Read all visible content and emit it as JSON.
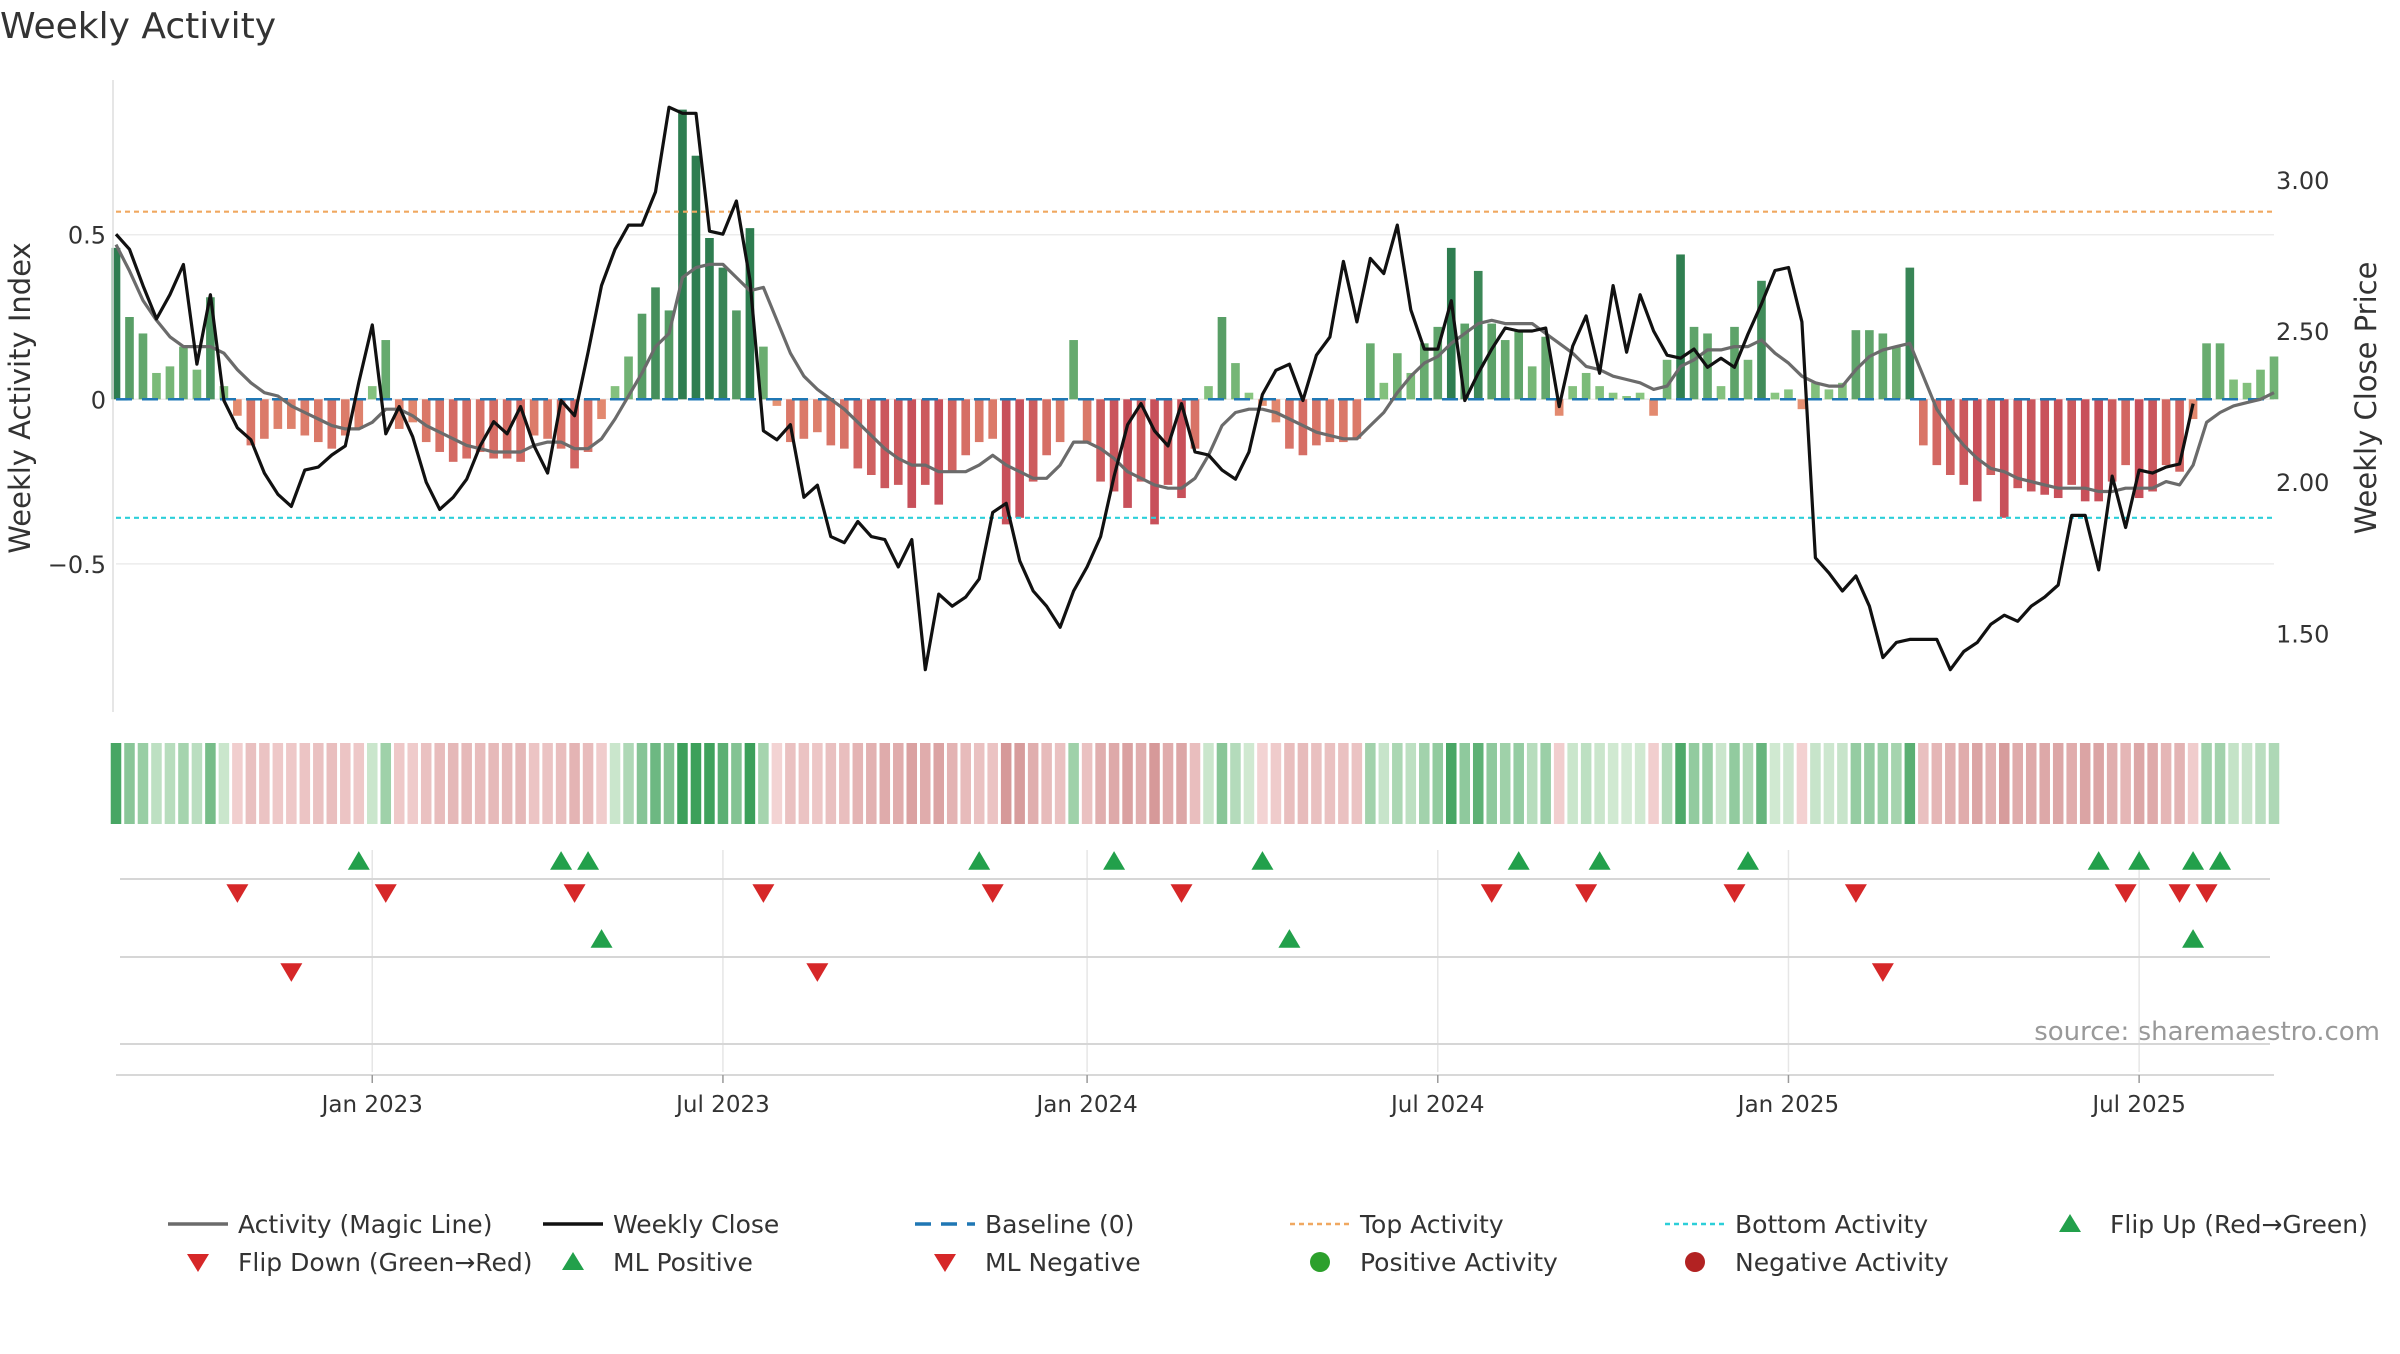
{
  "chart_data": {
    "type": "bar+line",
    "title": "Weekly Activity",
    "ylabel": "Weekly Activity Index",
    "y2label": "Weekly Close Price",
    "source": "source: sharemaestro.com",
    "ylim": [
      -0.95,
      0.97
    ],
    "y2lim": [
      1.24,
      3.33
    ],
    "yticks": [
      {
        "v": 0.5,
        "label": "0.5"
      },
      {
        "v": 0,
        "label": "0"
      },
      {
        "v": -0.5,
        "label": "−0.5"
      }
    ],
    "y2ticks": [
      {
        "v": 3.0,
        "label": "3.00"
      },
      {
        "v": 2.5,
        "label": "2.50"
      },
      {
        "v": 2.0,
        "label": "2.00"
      },
      {
        "v": 1.5,
        "label": "1.50"
      }
    ],
    "xticks": [
      {
        "i": 19,
        "label": "Jan 2023"
      },
      {
        "i": 45,
        "label": "Jul 2023"
      },
      {
        "i": 72,
        "label": "Jan 2024"
      },
      {
        "i": 98,
        "label": "Jul 2024"
      },
      {
        "i": 124,
        "label": "Jan 2025"
      },
      {
        "i": 150,
        "label": "Jul 2025"
      }
    ],
    "top_activity": 0.57,
    "bottom_activity": -0.36,
    "baseline": 0,
    "activity_bars": [
      0.46,
      0.25,
      0.2,
      0.08,
      0.1,
      0.16,
      0.09,
      0.31,
      0.04,
      -0.05,
      -0.14,
      -0.12,
      -0.09,
      -0.09,
      -0.11,
      -0.13,
      -0.15,
      -0.11,
      -0.09,
      0.04,
      0.18,
      -0.09,
      -0.07,
      -0.13,
      -0.16,
      -0.19,
      -0.18,
      -0.16,
      -0.18,
      -0.18,
      -0.19,
      -0.11,
      -0.12,
      -0.15,
      -0.21,
      -0.16,
      -0.06,
      0.04,
      0.13,
      0.26,
      0.34,
      0.27,
      0.88,
      0.74,
      0.49,
      0.4,
      0.27,
      0.52,
      0.16,
      -0.02,
      -0.13,
      -0.12,
      -0.1,
      -0.14,
      -0.15,
      -0.21,
      -0.23,
      -0.27,
      -0.26,
      -0.33,
      -0.26,
      -0.32,
      -0.22,
      -0.17,
      -0.13,
      -0.12,
      -0.38,
      -0.36,
      -0.25,
      -0.17,
      -0.13,
      0.18,
      -0.13,
      -0.25,
      -0.28,
      -0.33,
      -0.25,
      -0.38,
      -0.26,
      -0.3,
      -0.15,
      0.04,
      0.25,
      0.11,
      0.02,
      -0.02,
      -0.07,
      -0.15,
      -0.17,
      -0.14,
      -0.13,
      -0.13,
      -0.12,
      0.17,
      0.05,
      0.14,
      0.08,
      0.17,
      0.22,
      0.46,
      0.23,
      0.39,
      0.23,
      0.18,
      0.21,
      0.1,
      0.19,
      -0.05,
      0.04,
      0.08,
      0.04,
      0.02,
      0.01,
      0.02,
      -0.05,
      0.12,
      0.44,
      0.22,
      0.2,
      0.04,
      0.22,
      0.12,
      0.36,
      0.02,
      0.03,
      -0.03,
      0.05,
      0.03,
      0.05,
      0.21,
      0.21,
      0.2,
      0.16,
      0.4,
      -0.14,
      -0.2,
      -0.23,
      -0.26,
      -0.31,
      -0.23,
      -0.36,
      -0.27,
      -0.28,
      -0.29,
      -0.3,
      -0.26,
      -0.31,
      -0.31,
      -0.25,
      -0.2,
      -0.3,
      -0.28,
      -0.2,
      -0.22,
      -0.06,
      0.17,
      0.17,
      0.06,
      0.05,
      0.09,
      0.13
    ],
    "weekly_close": [
      2.82,
      2.77,
      2.65,
      2.54,
      2.62,
      2.72,
      2.39,
      2.62,
      2.27,
      2.18,
      2.14,
      2.03,
      1.96,
      1.92,
      2.04,
      2.05,
      2.09,
      2.12,
      2.33,
      2.52,
      2.16,
      2.25,
      2.15,
      2.0,
      1.91,
      1.95,
      2.01,
      2.12,
      2.2,
      2.16,
      2.25,
      2.12,
      2.03,
      2.27,
      2.22,
      2.43,
      2.65,
      2.77,
      2.85,
      2.85,
      2.96,
      3.24,
      3.22,
      3.22,
      2.83,
      2.82,
      2.93,
      2.67,
      2.17,
      2.14,
      2.19,
      1.95,
      1.99,
      1.82,
      1.8,
      1.87,
      1.82,
      1.81,
      1.72,
      1.81,
      1.38,
      1.63,
      1.59,
      1.62,
      1.68,
      1.9,
      1.93,
      1.74,
      1.64,
      1.59,
      1.52,
      1.64,
      1.72,
      1.82,
      2.02,
      2.19,
      2.26,
      2.17,
      2.12,
      2.26,
      2.1,
      2.09,
      2.04,
      2.01,
      2.1,
      2.29,
      2.37,
      2.39,
      2.27,
      2.42,
      2.48,
      2.73,
      2.53,
      2.74,
      2.69,
      2.85,
      2.57,
      2.44,
      2.44,
      2.6,
      2.27,
      2.36,
      2.44,
      2.51,
      2.5,
      2.5,
      2.51,
      2.25,
      2.45,
      2.55,
      2.36,
      2.65,
      2.43,
      2.62,
      2.5,
      2.42,
      2.41,
      2.44,
      2.38,
      2.41,
      2.38,
      2.49,
      2.59,
      2.7,
      2.71,
      2.53,
      1.75,
      1.7,
      1.64,
      1.69,
      1.59,
      1.42,
      1.47,
      1.48,
      1.48,
      1.48,
      1.38,
      1.44,
      1.47,
      1.53,
      1.56,
      1.54,
      1.59,
      1.62,
      1.66,
      1.89,
      1.89,
      1.71,
      2.02,
      1.85,
      2.04,
      2.03,
      2.05,
      2.06,
      2.26
    ],
    "magic_line": [
      0.47,
      0.39,
      0.3,
      0.24,
      0.19,
      0.16,
      0.16,
      0.16,
      0.14,
      0.09,
      0.05,
      0.02,
      0.01,
      -0.02,
      -0.04,
      -0.06,
      -0.08,
      -0.09,
      -0.09,
      -0.07,
      -0.03,
      -0.03,
      -0.05,
      -0.08,
      -0.1,
      -0.12,
      -0.14,
      -0.15,
      -0.16,
      -0.16,
      -0.16,
      -0.14,
      -0.13,
      -0.13,
      -0.15,
      -0.15,
      -0.12,
      -0.06,
      0.01,
      0.08,
      0.16,
      0.2,
      0.37,
      0.4,
      0.41,
      0.41,
      0.37,
      0.33,
      0.34,
      0.24,
      0.14,
      0.07,
      0.03,
      0.0,
      -0.03,
      -0.07,
      -0.11,
      -0.15,
      -0.18,
      -0.2,
      -0.2,
      -0.22,
      -0.22,
      -0.22,
      -0.2,
      -0.17,
      -0.2,
      -0.22,
      -0.24,
      -0.24,
      -0.2,
      -0.13,
      -0.13,
      -0.15,
      -0.18,
      -0.22,
      -0.24,
      -0.26,
      -0.27,
      -0.27,
      -0.24,
      -0.17,
      -0.08,
      -0.04,
      -0.03,
      -0.03,
      -0.04,
      -0.06,
      -0.08,
      -0.1,
      -0.11,
      -0.12,
      -0.12,
      -0.08,
      -0.04,
      0.02,
      0.07,
      0.11,
      0.13,
      0.17,
      0.2,
      0.23,
      0.24,
      0.23,
      0.23,
      0.23,
      0.2,
      0.17,
      0.14,
      0.1,
      0.09,
      0.07,
      0.06,
      0.05,
      0.03,
      0.04,
      0.1,
      0.12,
      0.15,
      0.15,
      0.16,
      0.16,
      0.18,
      0.14,
      0.11,
      0.07,
      0.05,
      0.04,
      0.04,
      0.09,
      0.13,
      0.15,
      0.16,
      0.17,
      0.07,
      -0.03,
      -0.09,
      -0.14,
      -0.18,
      -0.21,
      -0.22,
      -0.24,
      -0.25,
      -0.26,
      -0.27,
      -0.27,
      -0.27,
      -0.28,
      -0.28,
      -0.27,
      -0.27,
      -0.27,
      -0.25,
      -0.26,
      -0.2,
      -0.07,
      -0.04,
      -0.02,
      -0.01,
      0.0,
      0.02
    ],
    "flip_row1": {
      "up": [
        18,
        33,
        35,
        64,
        74,
        85,
        104,
        110,
        121,
        147,
        150,
        154,
        156
      ],
      "down": [
        9,
        20,
        34,
        48,
        65,
        79,
        102,
        109,
        120,
        129,
        149,
        153,
        155
      ]
    },
    "ml_row2": {
      "up": [
        36,
        87,
        154
      ],
      "down": [
        13,
        52,
        131
      ]
    },
    "legend": [
      {
        "key": "magic-line",
        "label": "Activity (Magic Line)",
        "color": "#6b6b6b"
      },
      {
        "key": "weekly-close",
        "label": "Weekly Close",
        "color": "#111111"
      },
      {
        "key": "baseline",
        "label": "Baseline (0)",
        "color": "#1f77b4"
      },
      {
        "key": "top-activity",
        "label": "Top Activity",
        "color": "#f0a860"
      },
      {
        "key": "bottom-activity",
        "label": "Bottom Activity",
        "color": "#2ccfd9"
      },
      {
        "key": "flip-up",
        "label": "Flip Up (Red→Green)",
        "color": "#22a04b"
      },
      {
        "key": "flip-down",
        "label": "Flip Down (Green→Red)",
        "color": "#d62728"
      },
      {
        "key": "ml-positive",
        "label": "ML Positive",
        "color": "#22a04b"
      },
      {
        "key": "ml-negative",
        "label": "ML Negative",
        "color": "#d62728"
      },
      {
        "key": "positive-activity",
        "label": "Positive Activity",
        "color": "#2ca02c"
      },
      {
        "key": "negative-activity",
        "label": "Negative Activity",
        "color": "#b22222"
      }
    ]
  }
}
